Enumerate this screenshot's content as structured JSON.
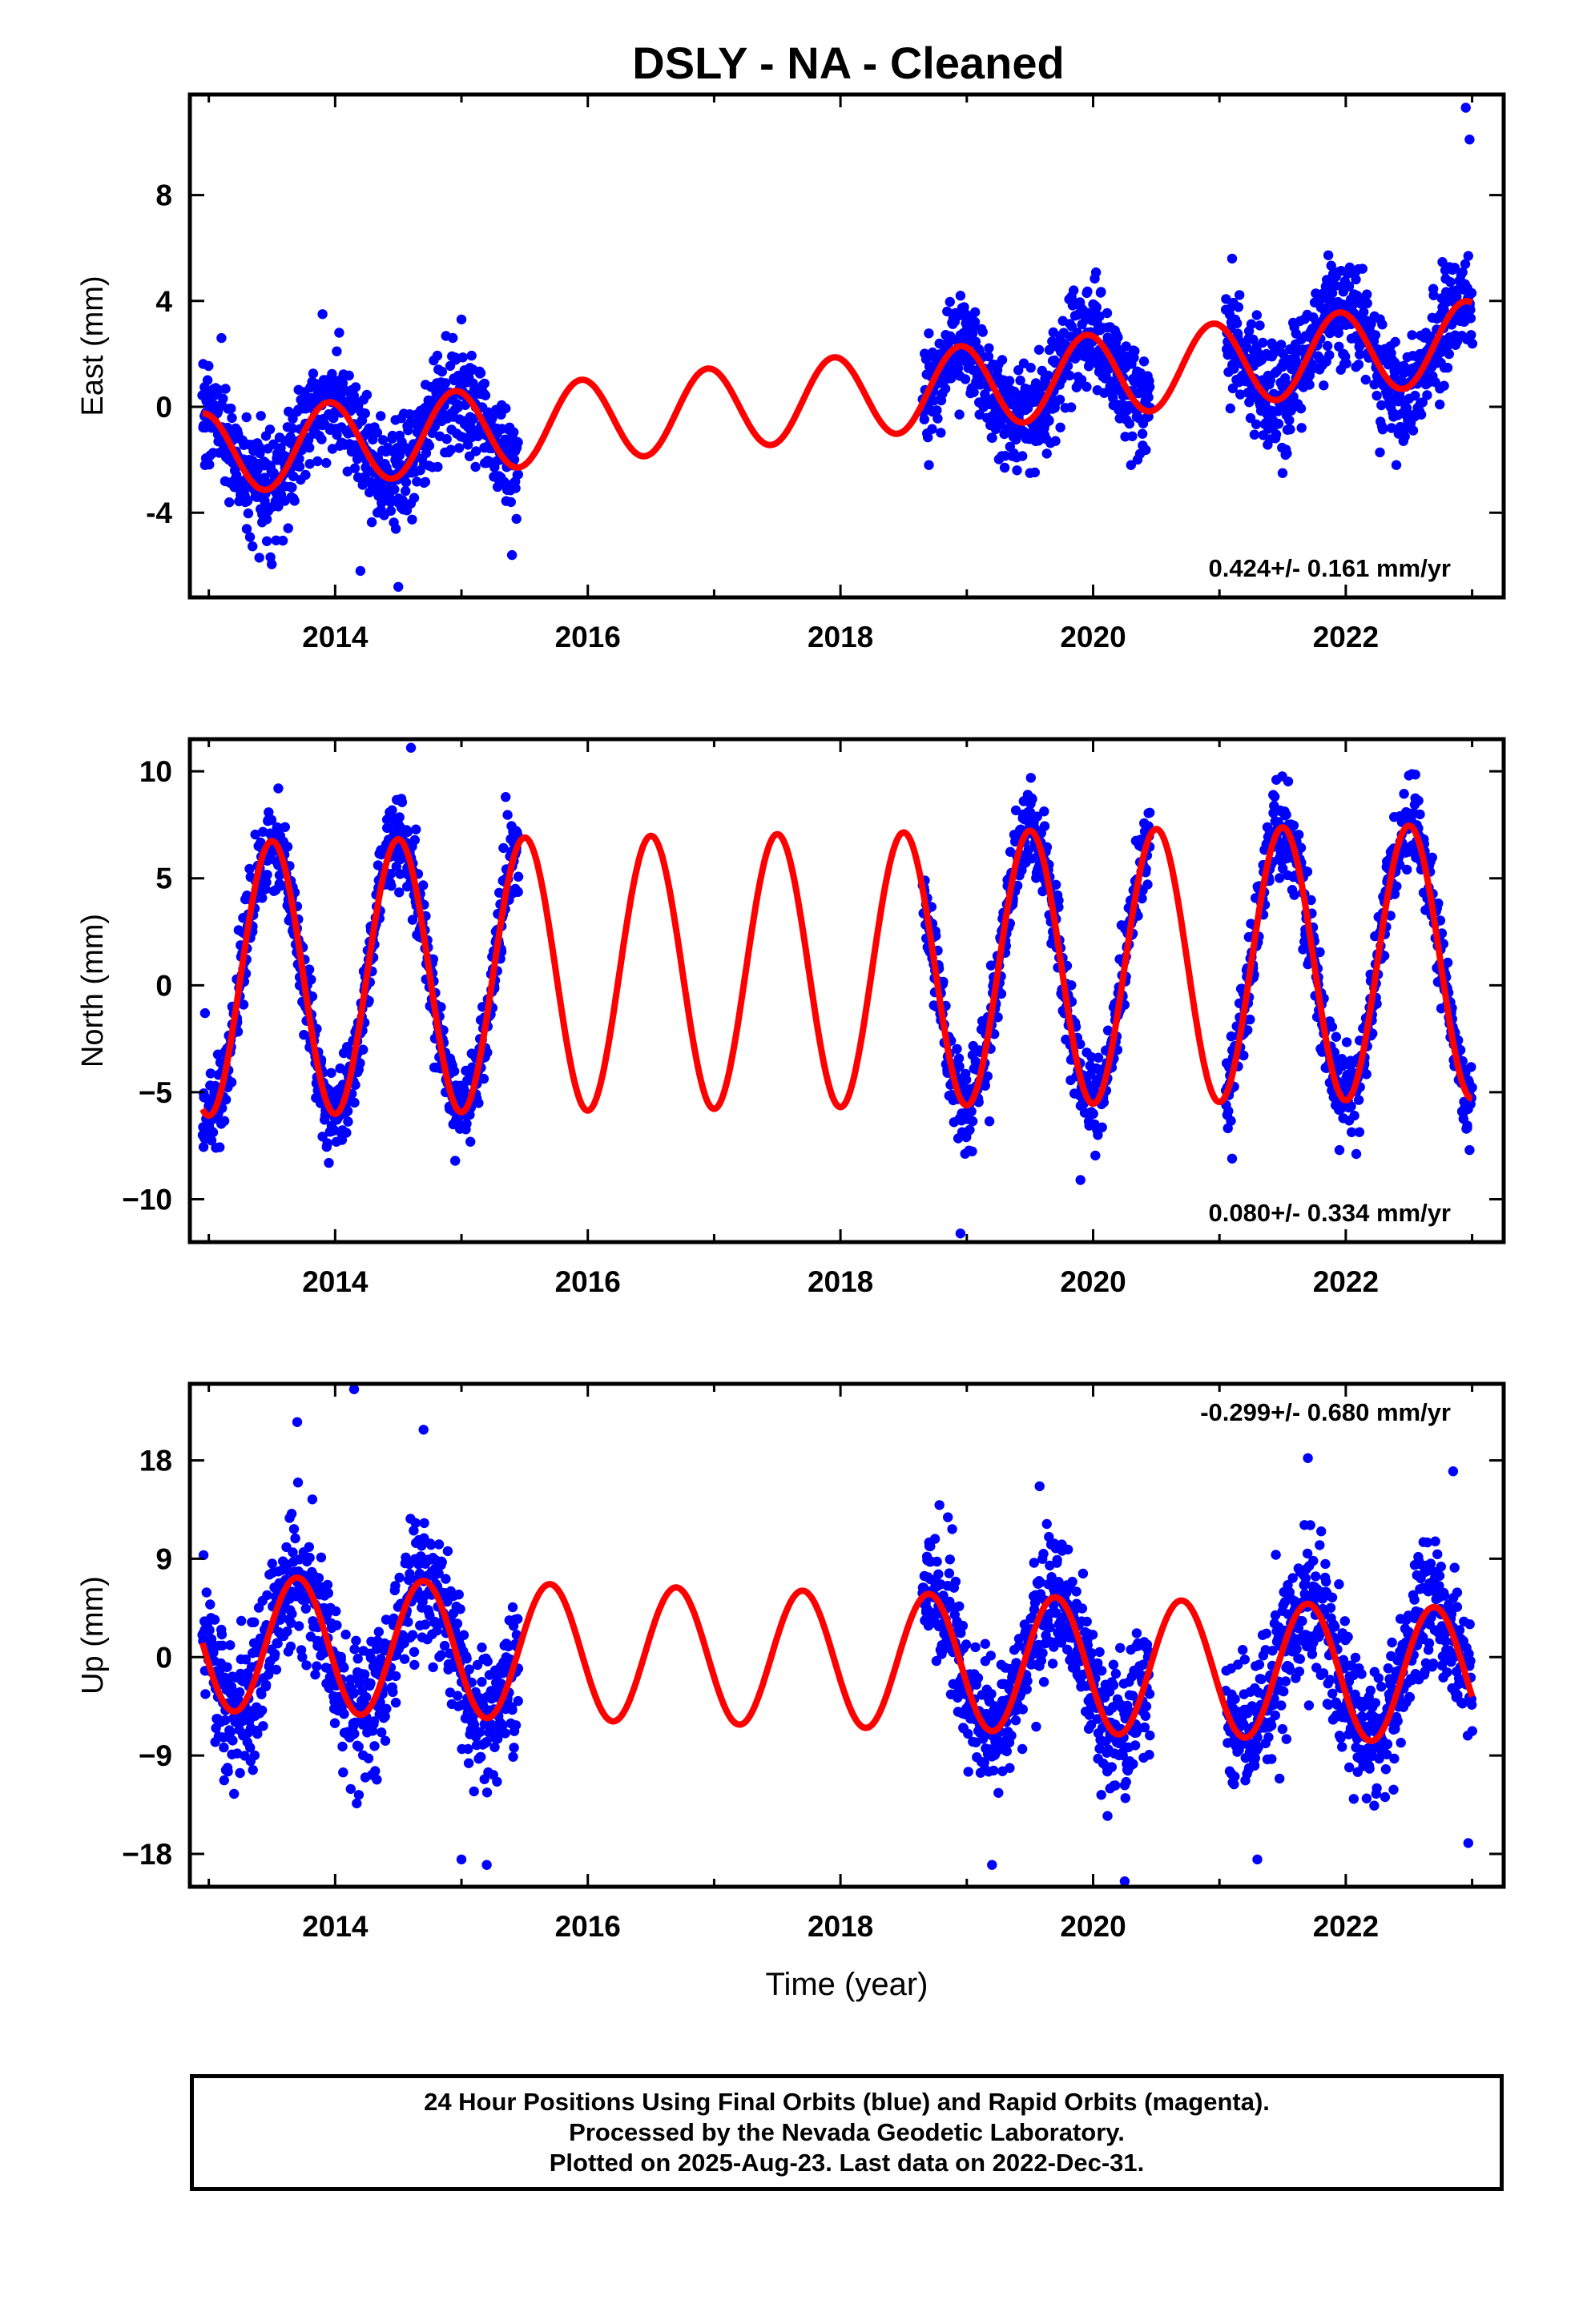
{
  "title": "DSLY  - NA - Cleaned",
  "footer": {
    "line1": "24 Hour Positions Using Final Orbits (blue) and Rapid Orbits (magenta).",
    "line2": "Processed by the Nevada Geodetic Laboratory.",
    "line3": "Plotted on 2025-Aug-23. Last data on 2022-Dec-31."
  },
  "colors": {
    "observations": "#0000ff",
    "model_fit": "#ff0000"
  },
  "chart_data": [
    {
      "type": "scatter",
      "ylabel": "East (mm)",
      "xlabel": "",
      "xlim": [
        2012.85,
        2023.25
      ],
      "ylim": [
        -7.2,
        11.8
      ],
      "xticks": [
        2014,
        2016,
        2018,
        2020,
        2022
      ],
      "yticks": [
        -4,
        0,
        4,
        8
      ],
      "ytick_labels": [
        "-4",
        "0",
        "4",
        "8"
      ],
      "rate_text": "0.424+/- 0.161 mm/yr",
      "rate_position": "bottom-right",
      "grid": false,
      "data_segments": [
        [
          2012.95,
          2015.45
        ],
        [
          2018.65,
          2020.45
        ],
        [
          2021.05,
          2023.0
        ]
      ],
      "series": [
        {
          "kind": "fit",
          "start": 2012.95,
          "end": 2023.0,
          "trend": {
            "t0": 2012.95,
            "value": -1.8,
            "rate": 0.424
          },
          "seasonal_amplitude": 1.55,
          "seasonal_peak": 2013.95
        },
        {
          "kind": "observations",
          "scatter_sd": 1.0,
          "points": [
            [
              2012.97,
              -2.2
            ],
            [
              2013.1,
              2.6
            ],
            [
              2013.25,
              -3.2
            ],
            [
              2013.4,
              -5.7
            ],
            [
              2013.6,
              -3.0
            ],
            [
              2013.9,
              3.5
            ],
            [
              2014.2,
              -6.2
            ],
            [
              2014.5,
              -6.8
            ],
            [
              2015.0,
              3.3
            ],
            [
              2015.4,
              -5.6
            ],
            [
              2018.7,
              -2.2
            ],
            [
              2018.95,
              4.2
            ],
            [
              2019.3,
              -2.3
            ],
            [
              2019.5,
              -2.5
            ],
            [
              2019.95,
              4.3
            ],
            [
              2020.3,
              -2.2
            ],
            [
              2021.1,
              5.6
            ],
            [
              2021.5,
              -2.5
            ],
            [
              2021.85,
              4.8
            ],
            [
              2022.1,
              5.2
            ],
            [
              2022.4,
              -2.2
            ],
            [
              2022.95,
              11.3
            ],
            [
              2022.98,
              10.1
            ],
            [
              2022.97,
              5.7
            ]
          ]
        }
      ]
    },
    {
      "type": "scatter",
      "ylabel": "North (mm)",
      "xlabel": "",
      "xlim": [
        2012.85,
        2023.25
      ],
      "ylim": [
        -12.0,
        11.5
      ],
      "xticks": [
        2014,
        2016,
        2018,
        2020,
        2022
      ],
      "yticks": [
        -10,
        -5,
        0,
        5,
        10
      ],
      "ytick_labels": [
        "−10",
        "−5",
        "0",
        "5",
        "10"
      ],
      "rate_text": "0.080+/- 0.334 mm/yr",
      "rate_position": "bottom-right",
      "grid": false,
      "data_segments": [
        [
          2012.95,
          2015.45
        ],
        [
          2018.65,
          2020.45
        ],
        [
          2021.05,
          2023.0
        ]
      ],
      "series": [
        {
          "kind": "fit",
          "start": 2012.95,
          "end": 2023.0,
          "trend": {
            "t0": 2012.95,
            "value": 0.3,
            "rate": 0.08
          },
          "seasonal_amplitude": 6.4,
          "seasonal_peak": 2013.5
        },
        {
          "kind": "observations",
          "scatter_sd": 1.0,
          "points": [
            [
              2012.97,
              -1.3
            ],
            [
              2013.55,
              9.2
            ],
            [
              2013.95,
              -8.3
            ],
            [
              2014.6,
              11.1
            ],
            [
              2014.95,
              -8.2
            ],
            [
              2015.35,
              8.8
            ],
            [
              2018.95,
              -11.6
            ],
            [
              2019.45,
              8.6
            ],
            [
              2019.9,
              -9.1
            ],
            [
              2021.1,
              -8.1
            ],
            [
              2021.45,
              9.6
            ],
            [
              2021.95,
              -7.7
            ],
            [
              2022.5,
              9.8
            ],
            [
              2022.98,
              -7.7
            ]
          ]
        }
      ]
    },
    {
      "type": "scatter",
      "ylabel": "Up (mm)",
      "xlabel": "Time (year)",
      "xlim": [
        2012.85,
        2023.25
      ],
      "ylim": [
        -21.0,
        25.0
      ],
      "xticks": [
        2014,
        2016,
        2018,
        2020,
        2022
      ],
      "yticks": [
        -18,
        -9,
        0,
        9,
        18
      ],
      "ytick_labels": [
        "−18",
        "−9",
        "0",
        "9",
        "18"
      ],
      "rate_text": "-0.299+/- 0.680 mm/yr",
      "rate_position": "top-right",
      "grid": false,
      "data_segments": [
        [
          2012.95,
          2015.45
        ],
        [
          2018.65,
          2020.45
        ],
        [
          2021.05,
          2023.0
        ]
      ],
      "series": [
        {
          "kind": "fit",
          "start": 2012.95,
          "end": 2023.0,
          "trend": {
            "t0": 2012.95,
            "value": 1.3,
            "rate": -0.299
          },
          "seasonal_amplitude": 6.2,
          "seasonal_peak": 2013.7
        },
        {
          "kind": "observations",
          "scatter_sd": 3.2,
          "points": [
            [
              2013.0,
              -1.2
            ],
            [
              2013.2,
              -12.5
            ],
            [
              2013.7,
              21.5
            ],
            [
              2014.15,
              24.5
            ],
            [
              2014.7,
              20.8
            ],
            [
              2015.0,
              -18.5
            ],
            [
              2015.2,
              -19.0
            ],
            [
              2018.85,
              12.8
            ],
            [
              2019.2,
              -19.0
            ],
            [
              2019.65,
              11.0
            ],
            [
              2020.25,
              -20.5
            ],
            [
              2021.3,
              -18.5
            ],
            [
              2021.7,
              18.2
            ],
            [
              2022.85,
              17.0
            ],
            [
              2022.97,
              -17.0
            ]
          ]
        }
      ]
    }
  ]
}
